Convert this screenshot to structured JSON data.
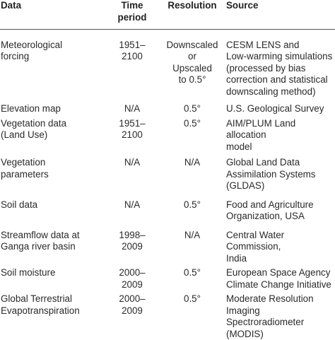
{
  "table": {
    "headers": {
      "data": "Data",
      "time_period": "Time\nperiod",
      "resolution": "Resolution",
      "source": "Source"
    },
    "rows": [
      {
        "data": "Meteorological\nforcing",
        "time_period": "1951–\n2100",
        "resolution": "Downscaled\nor\nUpscaled\nto 0.5°",
        "source": "CESM LENS and\nLow-warming simulations\n(processed by bias\ncorrection and statistical\ndownscaling method)"
      },
      {
        "data": "Elevation map",
        "time_period": "N/A",
        "resolution": "0.5°",
        "source": "U.S. Geological Survey"
      },
      {
        "data": "Vegetation data\n(Land Use)",
        "time_period": "1951–\n2100",
        "resolution": "0.5°",
        "source": "AIM/PLUM Land allocation\nmodel"
      },
      {
        "data": "Vegetation\nparameters",
        "time_period": "N/A",
        "resolution": "N/A",
        "source": "Global Land Data\nAssimilation Systems\n(GLDAS)"
      },
      {
        "data": "Soil data",
        "time_period": "N/A",
        "resolution": "0.5°",
        "source": "Food and Agriculture\nOrganization, USA"
      },
      {
        "data": "Streamflow data at\nGanga river basin",
        "time_period": "1998–\n2009",
        "resolution": "N/A",
        "source": "Central Water Commission,\nIndia"
      },
      {
        "data": "Soil moisture",
        "time_period": "2000–\n2009",
        "resolution": "0.5°",
        "source": "European Space Agency\nClimate Change Initiative"
      },
      {
        "data": "Global Terrestrial\nEvapotranspiration",
        "time_period": "2000–\n2009",
        "resolution": "0.5°",
        "source": "Moderate Resolution\nImaging Spectroradiometer\n(MODIS)"
      }
    ]
  }
}
